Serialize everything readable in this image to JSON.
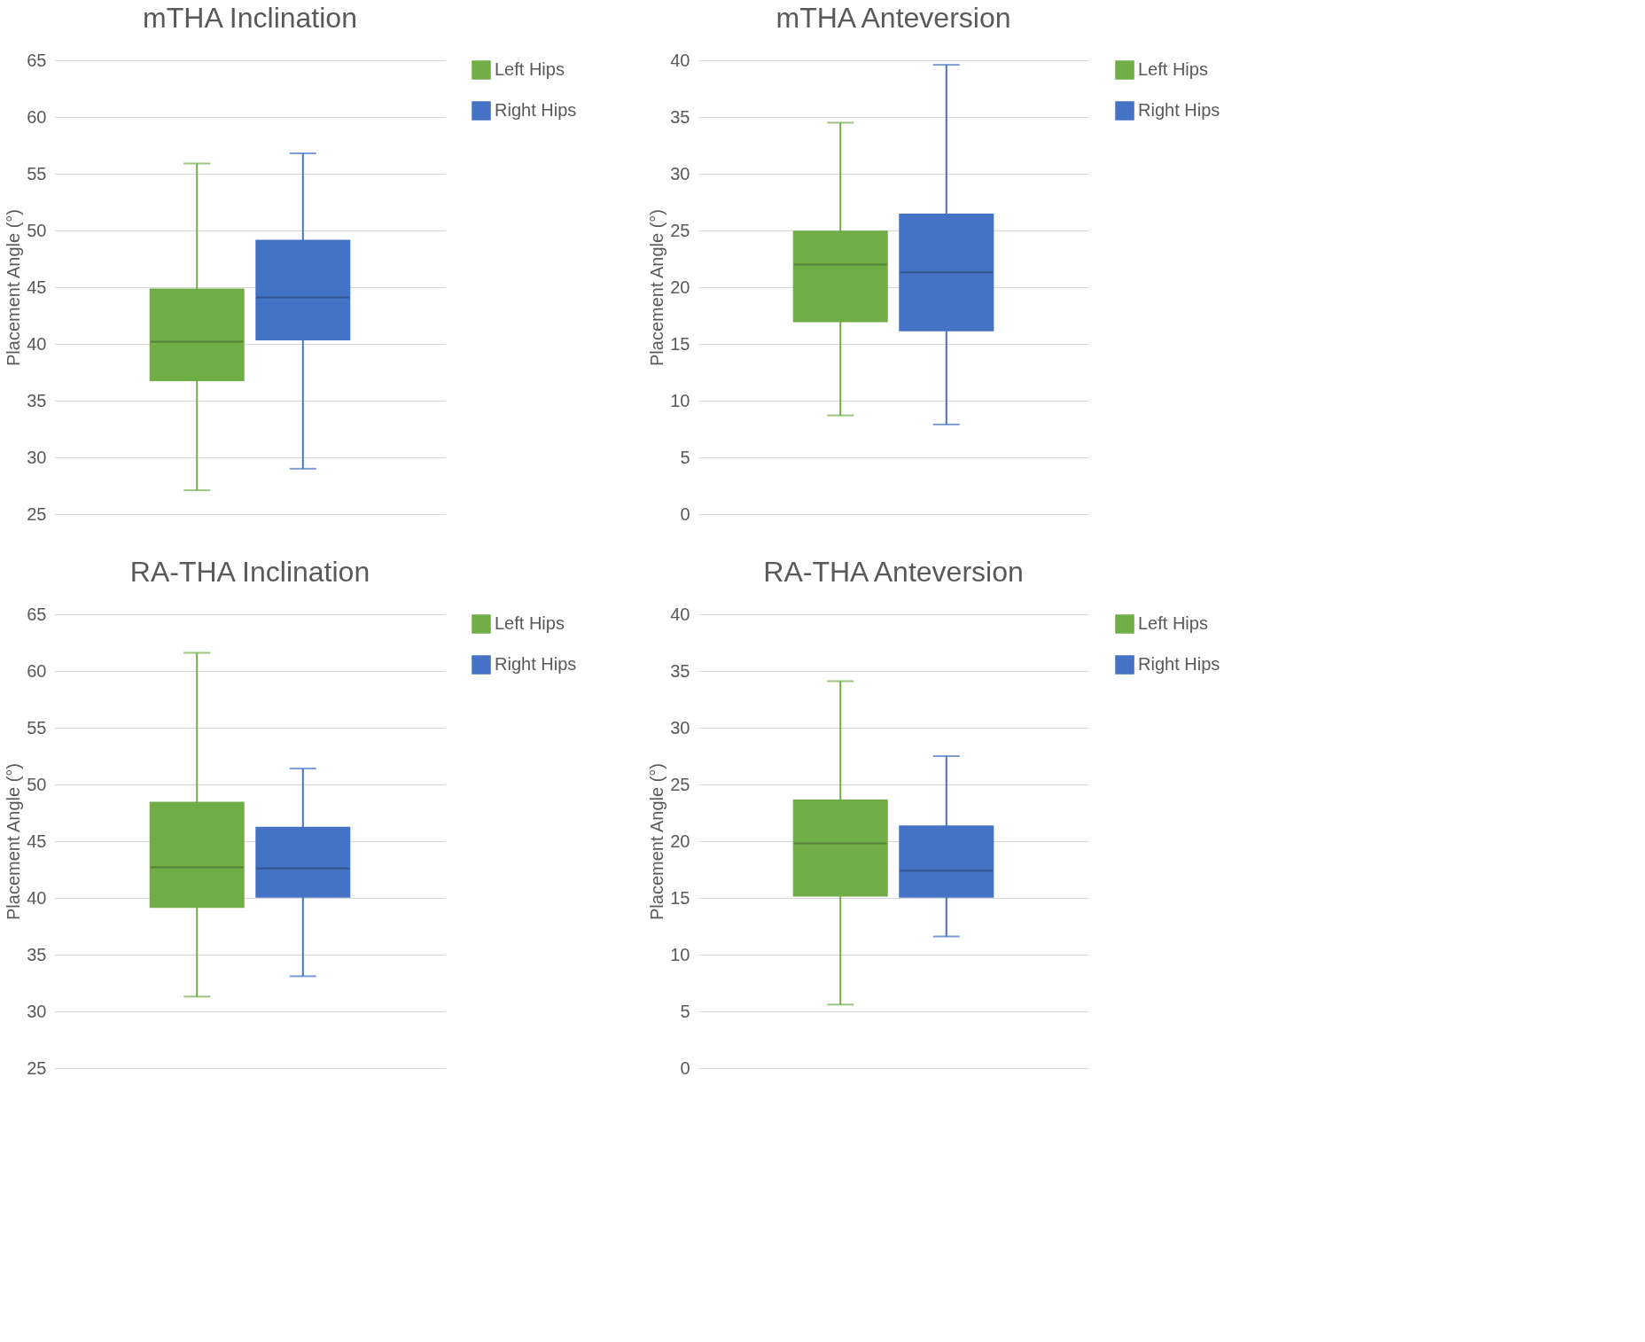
{
  "chart_data": [
    {
      "type": "box",
      "title": "mTHA Inclination",
      "ylabel": "Placement Angle (°)",
      "categories": [
        null
      ],
      "ylim": [
        25,
        65
      ],
      "yticks": [
        25,
        30,
        35,
        40,
        45,
        50,
        55,
        60,
        65
      ],
      "grid": "y",
      "legend": "right",
      "tick_labels": "y",
      "series": [
        {
          "name": "Left Hips",
          "color": "#70ad47",
          "boxes": [
            {
              "low": 27.1,
              "q1": 36.8,
              "median": 40.2,
              "q3": 44.8,
              "high": 55.9
            }
          ]
        },
        {
          "name": "Right Hips",
          "color": "#4472c4",
          "boxes": [
            {
              "low": 29.0,
              "q1": 40.4,
              "median": 44.1,
              "q3": 49.1,
              "high": 56.8
            }
          ]
        }
      ]
    },
    {
      "type": "box",
      "title": "mTHA Anteversion",
      "ylabel": "Placement Angle (°)",
      "categories": [
        null
      ],
      "ylim": [
        0,
        40
      ],
      "yticks": [
        0,
        5,
        10,
        15,
        20,
        25,
        30,
        35,
        40
      ],
      "grid": "y",
      "legend": "right",
      "tick_labels": "y",
      "series": [
        {
          "name": "Left Hips",
          "color": "#70ad47",
          "boxes": [
            {
              "low": 8.7,
              "q1": 17.0,
              "median": 22.0,
              "q3": 24.9,
              "high": 34.5
            }
          ]
        },
        {
          "name": "Right Hips",
          "color": "#4472c4",
          "boxes": [
            {
              "low": 7.9,
              "q1": 16.2,
              "median": 21.3,
              "q3": 26.4,
              "high": 39.6
            }
          ]
        }
      ]
    },
    {
      "type": "box",
      "title": "RA-THA Inclination",
      "ylabel": "Placement Angle (°)",
      "categories": [
        null
      ],
      "ylim": [
        25,
        65
      ],
      "yticks": [
        25,
        30,
        35,
        40,
        45,
        50,
        55,
        60,
        65
      ],
      "grid": "y",
      "legend": "right",
      "tick_labels": "y",
      "series": [
        {
          "name": "Left Hips",
          "color": "#70ad47",
          "boxes": [
            {
              "low": 31.3,
              "q1": 39.2,
              "median": 42.7,
              "q3": 48.4,
              "high": 61.6
            }
          ]
        },
        {
          "name": "Right Hips",
          "color": "#4472c4",
          "boxes": [
            {
              "low": 33.1,
              "q1": 40.1,
              "median": 42.6,
              "q3": 46.2,
              "high": 51.4
            }
          ]
        }
      ]
    },
    {
      "type": "box",
      "title": "RA-THA Anteversion",
      "ylabel": "Placement Angle (°)",
      "categories": [
        null
      ],
      "ylim": [
        0,
        40
      ],
      "yticks": [
        0,
        5,
        10,
        15,
        20,
        25,
        30,
        35,
        40
      ],
      "grid": "y",
      "legend": "right",
      "tick_labels": "y",
      "series": [
        {
          "name": "Left Hips",
          "color": "#70ad47",
          "boxes": [
            {
              "low": 5.6,
              "q1": 15.2,
              "median": 19.8,
              "q3": 23.6,
              "high": 34.1
            }
          ]
        },
        {
          "name": "Right Hips",
          "color": "#4472c4",
          "boxes": [
            {
              "low": 11.6,
              "q1": 15.1,
              "median": 17.4,
              "q3": 21.3,
              "high": 27.5
            }
          ]
        }
      ]
    }
  ]
}
